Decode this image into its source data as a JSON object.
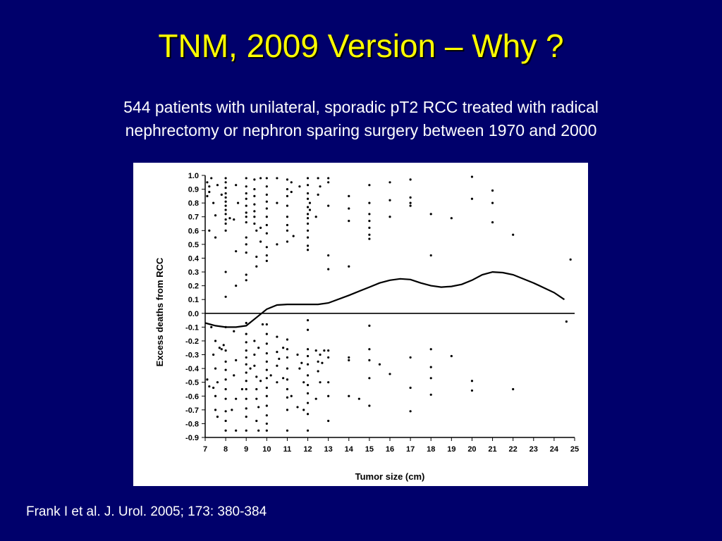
{
  "slide": {
    "title": "TNM, 2009 Version – Why ?",
    "subtitle_line1": "544 patients with unilateral, sporadic pT2 RCC treated with radical",
    "subtitle_line2": "nephrectomy or nephron sparing surgery between 1970 and 2000",
    "citation": "Frank I et al. J. Urol. 2005; 173: 380-384"
  },
  "colors": {
    "background": "#00006b",
    "title": "#ffff00",
    "text": "#ffffff",
    "plot": "#000000"
  },
  "chart_data": {
    "type": "scatter",
    "title": "",
    "xlabel": "Tumor size (cm)",
    "ylabel": "Excess deaths from RCC",
    "xlim": [
      7,
      25
    ],
    "ylim": [
      -0.9,
      1.0
    ],
    "x_ticks": [
      7,
      8,
      9,
      10,
      11,
      12,
      13,
      14,
      15,
      16,
      17,
      18,
      19,
      20,
      21,
      22,
      23,
      24,
      25
    ],
    "y_ticks": [
      "1.0",
      "0.9",
      "0.8",
      "0.7",
      "0.6",
      "0.5",
      "0.4",
      "0.3",
      "0.2",
      "0.1",
      "0.0",
      "-0.1",
      "-0.2",
      "-0.3",
      "-0.4",
      "-0.5",
      "-0.6",
      "-0.7",
      "-0.8",
      "-0.9"
    ],
    "grid": false,
    "reference_line_y": 0.0,
    "smooth_curve": [
      [
        7.0,
        -0.07
      ],
      [
        7.5,
        -0.09
      ],
      [
        8.0,
        -0.1
      ],
      [
        8.5,
        -0.1
      ],
      [
        9.0,
        -0.09
      ],
      [
        9.5,
        -0.03
      ],
      [
        10.0,
        0.03
      ],
      [
        10.5,
        0.06
      ],
      [
        11.0,
        0.065
      ],
      [
        12.0,
        0.065
      ],
      [
        12.5,
        0.065
      ],
      [
        13.0,
        0.075
      ],
      [
        14.0,
        0.13
      ],
      [
        15.0,
        0.19
      ],
      [
        15.5,
        0.22
      ],
      [
        16.0,
        0.24
      ],
      [
        16.5,
        0.25
      ],
      [
        17.0,
        0.245
      ],
      [
        17.5,
        0.22
      ],
      [
        18.0,
        0.2
      ],
      [
        18.5,
        0.19
      ],
      [
        19.0,
        0.195
      ],
      [
        19.5,
        0.21
      ],
      [
        20.0,
        0.24
      ],
      [
        20.5,
        0.28
      ],
      [
        21.0,
        0.3
      ],
      [
        21.5,
        0.295
      ],
      [
        22.0,
        0.28
      ],
      [
        23.0,
        0.22
      ],
      [
        24.0,
        0.15
      ],
      [
        24.5,
        0.1
      ]
    ],
    "points": [
      [
        7.1,
        0.95
      ],
      [
        7.2,
        0.92
      ],
      [
        7.3,
        0.98
      ],
      [
        7.1,
        0.85
      ],
      [
        7.2,
        0.88
      ],
      [
        7.4,
        0.8
      ],
      [
        7.5,
        0.71
      ],
      [
        7.5,
        0.55
      ],
      [
        7.2,
        0.6
      ],
      [
        7.6,
        0.93
      ],
      [
        8.0,
        0.98
      ],
      [
        8.0,
        0.95
      ],
      [
        8.0,
        0.91
      ],
      [
        8.0,
        0.87
      ],
      [
        8.0,
        0.84
      ],
      [
        8.0,
        0.81
      ],
      [
        8.0,
        0.78
      ],
      [
        8.0,
        0.75
      ],
      [
        8.0,
        0.72
      ],
      [
        8.0,
        0.68
      ],
      [
        8.0,
        0.65
      ],
      [
        8.0,
        0.6
      ],
      [
        8.0,
        0.3
      ],
      [
        8.0,
        0.12
      ],
      [
        7.8,
        0.86
      ],
      [
        8.2,
        0.69
      ],
      [
        8.5,
        0.93
      ],
      [
        8.5,
        0.45
      ],
      [
        8.5,
        0.2
      ],
      [
        8.6,
        0.8
      ],
      [
        8.4,
        0.68
      ],
      [
        9.0,
        0.98
      ],
      [
        9.0,
        0.92
      ],
      [
        9.0,
        0.87
      ],
      [
        9.0,
        0.83
      ],
      [
        9.0,
        0.78
      ],
      [
        9.0,
        0.73
      ],
      [
        9.0,
        0.7
      ],
      [
        9.0,
        0.66
      ],
      [
        9.0,
        0.55
      ],
      [
        9.0,
        0.5
      ],
      [
        9.0,
        0.44
      ],
      [
        9.0,
        0.28
      ],
      [
        9.0,
        0.24
      ],
      [
        9.4,
        0.97
      ],
      [
        9.4,
        0.9
      ],
      [
        9.4,
        0.85
      ],
      [
        9.4,
        0.79
      ],
      [
        9.4,
        0.74
      ],
      [
        9.4,
        0.7
      ],
      [
        9.4,
        0.65
      ],
      [
        9.5,
        0.6
      ],
      [
        9.5,
        0.41
      ],
      [
        9.5,
        0.34
      ],
      [
        9.7,
        0.98
      ],
      [
        9.7,
        0.62
      ],
      [
        9.7,
        0.52
      ],
      [
        10.0,
        0.98
      ],
      [
        10.0,
        0.92
      ],
      [
        10.0,
        0.86
      ],
      [
        10.0,
        0.81
      ],
      [
        10.0,
        0.76
      ],
      [
        10.0,
        0.7
      ],
      [
        10.0,
        0.64
      ],
      [
        10.0,
        0.58
      ],
      [
        10.0,
        0.48
      ],
      [
        10.0,
        0.42
      ],
      [
        10.0,
        0.38
      ],
      [
        10.5,
        0.98
      ],
      [
        10.5,
        0.8
      ],
      [
        10.5,
        0.5
      ],
      [
        11.0,
        0.97
      ],
      [
        11.0,
        0.9
      ],
      [
        11.0,
        0.85
      ],
      [
        11.0,
        0.78
      ],
      [
        11.0,
        0.7
      ],
      [
        11.0,
        0.64
      ],
      [
        11.0,
        0.6
      ],
      [
        11.0,
        0.52
      ],
      [
        11.2,
        0.95
      ],
      [
        11.2,
        0.88
      ],
      [
        11.3,
        0.56
      ],
      [
        11.6,
        0.92
      ],
      [
        12.0,
        0.98
      ],
      [
        12.0,
        0.93
      ],
      [
        12.0,
        0.87
      ],
      [
        12.0,
        0.83
      ],
      [
        12.0,
        0.77
      ],
      [
        12.0,
        0.72
      ],
      [
        12.0,
        0.69
      ],
      [
        12.0,
        0.65
      ],
      [
        12.0,
        0.6
      ],
      [
        12.0,
        0.55
      ],
      [
        12.0,
        0.49
      ],
      [
        12.0,
        0.46
      ],
      [
        12.1,
        0.8
      ],
      [
        12.1,
        0.75
      ],
      [
        12.5,
        0.98
      ],
      [
        12.5,
        0.86
      ],
      [
        12.4,
        0.7
      ],
      [
        12.6,
        0.92
      ],
      [
        13.0,
        0.98
      ],
      [
        13.0,
        0.95
      ],
      [
        13.0,
        0.78
      ],
      [
        13.0,
        0.42
      ],
      [
        13.0,
        0.32
      ],
      [
        14.0,
        0.85
      ],
      [
        14.0,
        0.76
      ],
      [
        14.0,
        0.67
      ],
      [
        14.0,
        0.34
      ],
      [
        15.0,
        0.93
      ],
      [
        15.0,
        0.8
      ],
      [
        15.0,
        0.72
      ],
      [
        15.0,
        0.67
      ],
      [
        15.0,
        0.62
      ],
      [
        15.0,
        0.57
      ],
      [
        15.0,
        0.54
      ],
      [
        16.0,
        0.95
      ],
      [
        16.0,
        0.82
      ],
      [
        16.0,
        0.7
      ],
      [
        17.0,
        0.97
      ],
      [
        17.0,
        0.84
      ],
      [
        17.0,
        0.8
      ],
      [
        17.0,
        0.78
      ],
      [
        18.0,
        0.72
      ],
      [
        18.0,
        0.42
      ],
      [
        19.0,
        0.69
      ],
      [
        20.0,
        0.99
      ],
      [
        20.0,
        0.83
      ],
      [
        21.0,
        0.89
      ],
      [
        21.0,
        0.8
      ],
      [
        21.0,
        0.66
      ],
      [
        22.0,
        0.57
      ],
      [
        24.8,
        0.39
      ],
      [
        7.1,
        -0.48
      ],
      [
        7.2,
        -0.53
      ],
      [
        7.3,
        -0.1
      ],
      [
        7.4,
        -0.3
      ],
      [
        7.5,
        -0.2
      ],
      [
        7.5,
        -0.4
      ],
      [
        7.5,
        -0.6
      ],
      [
        7.5,
        -0.7
      ],
      [
        7.6,
        -0.75
      ],
      [
        7.4,
        -0.54
      ],
      [
        7.7,
        -0.25
      ],
      [
        7.6,
        -0.5
      ],
      [
        8.0,
        -0.1
      ],
      [
        8.0,
        -0.27
      ],
      [
        8.0,
        -0.35
      ],
      [
        8.0,
        -0.41
      ],
      [
        8.0,
        -0.48
      ],
      [
        8.0,
        -0.55
      ],
      [
        8.0,
        -0.62
      ],
      [
        8.0,
        -0.71
      ],
      [
        8.0,
        -0.78
      ],
      [
        8.0,
        -0.85
      ],
      [
        7.9,
        -0.23
      ],
      [
        7.8,
        -0.26
      ],
      [
        8.4,
        -0.13
      ],
      [
        8.4,
        -0.45
      ],
      [
        8.5,
        -0.34
      ],
      [
        8.5,
        -0.62
      ],
      [
        8.3,
        -0.7
      ],
      [
        8.5,
        -0.85
      ],
      [
        9.0,
        -0.07
      ],
      [
        9.0,
        -0.15
      ],
      [
        9.0,
        -0.21
      ],
      [
        9.0,
        -0.27
      ],
      [
        9.0,
        -0.32
      ],
      [
        9.0,
        -0.37
      ],
      [
        9.0,
        -0.43
      ],
      [
        9.0,
        -0.49
      ],
      [
        9.0,
        -0.55
      ],
      [
        9.0,
        -0.62
      ],
      [
        9.0,
        -0.69
      ],
      [
        9.0,
        -0.75
      ],
      [
        9.0,
        -0.85
      ],
      [
        8.8,
        -0.55
      ],
      [
        9.2,
        -0.4
      ],
      [
        9.4,
        -0.2
      ],
      [
        9.4,
        -0.3
      ],
      [
        9.4,
        -0.38
      ],
      [
        9.5,
        -0.46
      ],
      [
        9.5,
        -0.55
      ],
      [
        9.5,
        -0.62
      ],
      [
        9.5,
        -0.78
      ],
      [
        9.6,
        -0.85
      ],
      [
        9.6,
        -0.25
      ],
      [
        9.6,
        -0.68
      ],
      [
        9.7,
        -0.49
      ],
      [
        9.8,
        -0.08
      ],
      [
        10.0,
        -0.08
      ],
      [
        10.0,
        -0.15
      ],
      [
        10.0,
        -0.22
      ],
      [
        10.0,
        -0.29
      ],
      [
        10.0,
        -0.35
      ],
      [
        10.0,
        -0.41
      ],
      [
        10.0,
        -0.47
      ],
      [
        10.0,
        -0.54
      ],
      [
        10.0,
        -0.6
      ],
      [
        10.0,
        -0.67
      ],
      [
        10.0,
        -0.74
      ],
      [
        10.0,
        -0.8
      ],
      [
        10.0,
        -0.85
      ],
      [
        10.2,
        -0.45
      ],
      [
        10.5,
        -0.17
      ],
      [
        10.5,
        -0.28
      ],
      [
        10.5,
        -0.38
      ],
      [
        10.5,
        -0.5
      ],
      [
        10.6,
        -0.33
      ],
      [
        10.8,
        -0.47
      ],
      [
        10.8,
        -0.25
      ],
      [
        11.0,
        -0.19
      ],
      [
        11.0,
        -0.26
      ],
      [
        11.0,
        -0.32
      ],
      [
        11.0,
        -0.4
      ],
      [
        11.0,
        -0.48
      ],
      [
        11.0,
        -0.55
      ],
      [
        11.0,
        -0.61
      ],
      [
        11.0,
        -0.7
      ],
      [
        11.0,
        -0.85
      ],
      [
        11.2,
        -0.6
      ],
      [
        11.5,
        -0.3
      ],
      [
        11.6,
        -0.4
      ],
      [
        11.5,
        -0.68
      ],
      [
        11.7,
        -0.36
      ],
      [
        11.8,
        -0.7
      ],
      [
        11.8,
        -0.5
      ],
      [
        12.0,
        -0.05
      ],
      [
        12.0,
        -0.12
      ],
      [
        12.0,
        -0.26
      ],
      [
        12.0,
        -0.31
      ],
      [
        12.0,
        -0.37
      ],
      [
        12.0,
        -0.45
      ],
      [
        12.0,
        -0.52
      ],
      [
        12.0,
        -0.58
      ],
      [
        12.0,
        -0.65
      ],
      [
        12.0,
        -0.73
      ],
      [
        12.0,
        -0.85
      ],
      [
        12.4,
        -0.27
      ],
      [
        12.5,
        -0.35
      ],
      [
        12.5,
        -0.42
      ],
      [
        12.6,
        -0.3
      ],
      [
        12.4,
        -0.62
      ],
      [
        12.6,
        -0.5
      ],
      [
        12.8,
        -0.27
      ],
      [
        12.7,
        -0.36
      ],
      [
        13.0,
        -0.27
      ],
      [
        13.0,
        -0.32
      ],
      [
        13.0,
        -0.5
      ],
      [
        13.0,
        -0.6
      ],
      [
        13.0,
        -0.78
      ],
      [
        14.0,
        -0.32
      ],
      [
        14.0,
        -0.34
      ],
      [
        14.0,
        -0.6
      ],
      [
        14.5,
        -0.62
      ],
      [
        15.0,
        -0.09
      ],
      [
        15.0,
        -0.26
      ],
      [
        15.0,
        -0.34
      ],
      [
        15.0,
        -0.47
      ],
      [
        15.0,
        -0.67
      ],
      [
        15.5,
        -0.37
      ],
      [
        16.0,
        -0.44
      ],
      [
        17.0,
        -0.32
      ],
      [
        17.0,
        -0.54
      ],
      [
        17.0,
        -0.71
      ],
      [
        18.0,
        -0.26
      ],
      [
        18.0,
        -0.39
      ],
      [
        18.0,
        -0.47
      ],
      [
        18.0,
        -0.59
      ],
      [
        19.0,
        -0.31
      ],
      [
        20.0,
        -0.49
      ],
      [
        20.0,
        -0.56
      ],
      [
        22.0,
        -0.55
      ],
      [
        24.6,
        -0.06
      ]
    ]
  }
}
